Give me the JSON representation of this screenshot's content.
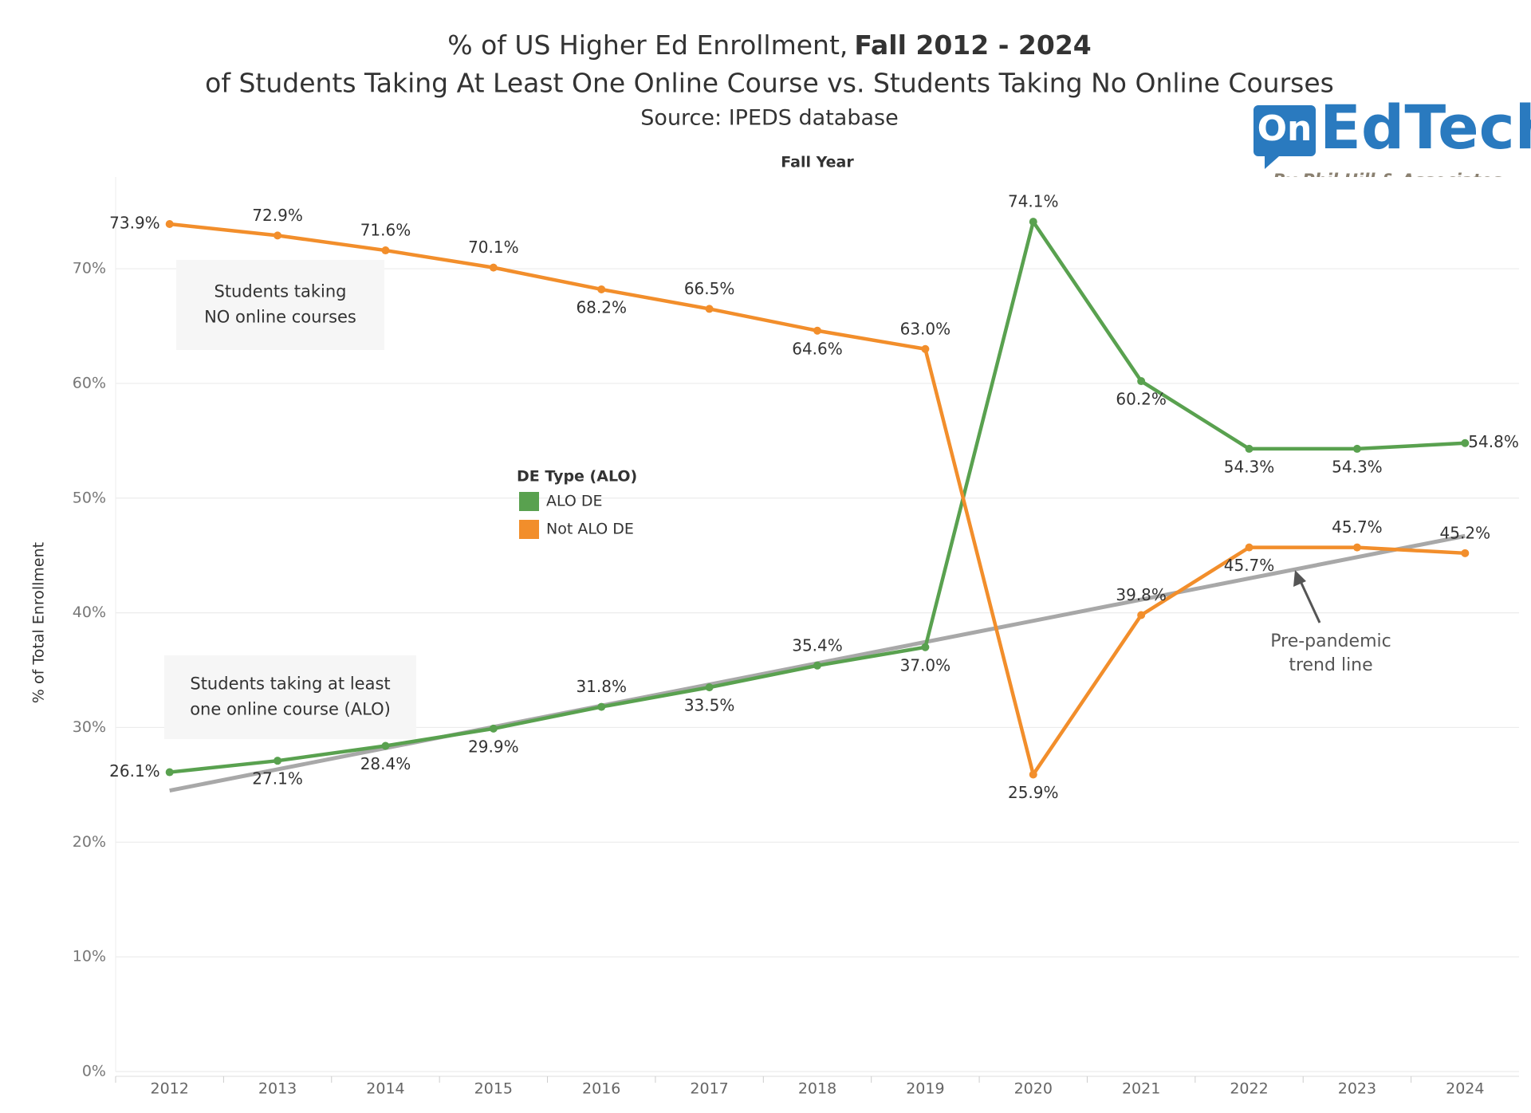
{
  "chart_data": {
    "type": "line",
    "title": "% of US Higher Ed Enrollment,",
    "title_bold": "Fall 2012 - 2024",
    "subtitle": "of Students Taking At Least One Online Course vs. Students Taking No Online Courses",
    "source": "Source: IPEDS database",
    "x_label": "Fall Year",
    "y_label": "% of Total Enrollment",
    "categories": [
      "2012",
      "2013",
      "2014",
      "2015",
      "2016",
      "2017",
      "2018",
      "2019",
      "2020",
      "2021",
      "2022",
      "2023",
      "2024"
    ],
    "series": [
      {
        "name": "ALO DE",
        "color": "#59a14f",
        "values": [
          26.1,
          27.1,
          28.4,
          29.9,
          31.8,
          33.5,
          35.4,
          37.0,
          74.1,
          60.2,
          54.3,
          54.3,
          54.8
        ],
        "value_labels": [
          "26.1%",
          "27.1%",
          "28.4%",
          "29.9%",
          "31.8%",
          "33.5%",
          "35.4%",
          "37.0%",
          "74.1%",
          "60.2%",
          "54.3%",
          "54.3%",
          "54.8%"
        ]
      },
      {
        "name": "Not ALO DE",
        "color": "#f28e2b",
        "values": [
          73.9,
          72.9,
          71.6,
          70.1,
          68.2,
          66.5,
          64.6,
          63.0,
          25.9,
          39.8,
          45.7,
          45.7,
          45.2
        ],
        "value_labels": [
          "73.9%",
          "72.9%",
          "71.6%",
          "70.1%",
          "68.2%",
          "66.5%",
          "64.6%",
          "63.0%",
          "25.9%",
          "39.8%",
          "45.7%",
          "45.7%",
          "45.2%"
        ]
      }
    ],
    "legend_title": "DE Type (ALO)",
    "ylim": [
      0,
      78
    ],
    "yticks": [
      {
        "value": 0,
        "label": "0%"
      },
      {
        "value": 10,
        "label": "10%"
      },
      {
        "value": 20,
        "label": "20%"
      },
      {
        "value": 30,
        "label": "30%"
      },
      {
        "value": 40,
        "label": "40%"
      },
      {
        "value": 50,
        "label": "50%"
      },
      {
        "value": 60,
        "label": "60%"
      },
      {
        "value": 70,
        "label": "70%"
      }
    ],
    "grid": true,
    "trend_line": {
      "values": [
        24.5,
        46.7
      ],
      "color": "#999999",
      "label": [
        "Pre-pandemic",
        "trend line"
      ]
    },
    "annotations": [
      {
        "lines": [
          "Students taking",
          "NO online courses"
        ]
      },
      {
        "lines": [
          "Students taking at least",
          "one online course (ALO)"
        ]
      }
    ]
  },
  "logo": {
    "mark": "On",
    "name": "EdTech",
    "byline": "By Phil Hill & Associates"
  }
}
